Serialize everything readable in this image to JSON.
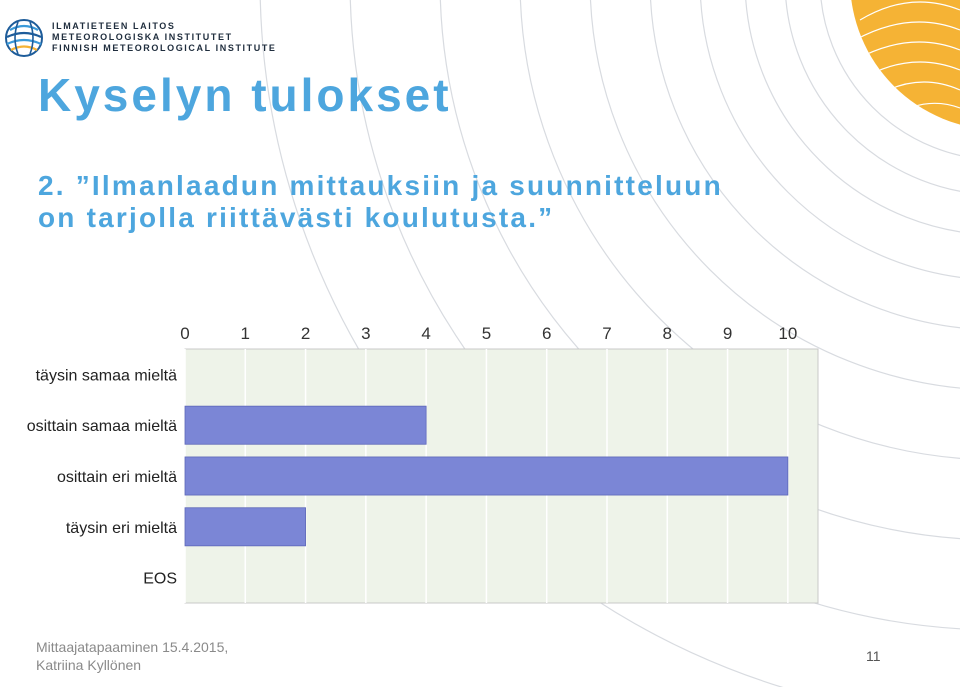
{
  "header": {
    "org_lines": [
      "ILMATIETEEN LAITOS",
      "METEOROLOGISKA INSTITUTET",
      "FINNISH METEOROLOGICAL INSTITUTE"
    ]
  },
  "slide": {
    "title": "Kyselyn tulokset",
    "question_lines": [
      "2. ”Ilmanlaadun mittauksiin ja suunnitteluun",
      "on tarjolla riittävästi koulutusta.”"
    ]
  },
  "chart_data": {
    "type": "bar",
    "orientation": "horizontal",
    "categories": [
      "täysin samaa mieltä",
      "osittain samaa mieltä",
      "osittain eri mieltä",
      "täysin eri mieltä",
      "EOS"
    ],
    "values": [
      0,
      4,
      10,
      2,
      0
    ],
    "xticks": [
      0,
      1,
      2,
      3,
      4,
      5,
      6,
      7,
      8,
      9,
      10
    ],
    "xlim": [
      0,
      10.5
    ],
    "title": "",
    "xlabel": "",
    "ylabel": "",
    "grid": true,
    "bar_color": "#7b86d6"
  },
  "footer": {
    "lines": [
      "Mittaajatapaaminen 15.4.2015,",
      "Katriina Kyllönen"
    ],
    "page_number": "11"
  },
  "colors": {
    "accent": "#4da6de",
    "sun": "#f5b335",
    "plot_bg": "#eef3e9"
  }
}
